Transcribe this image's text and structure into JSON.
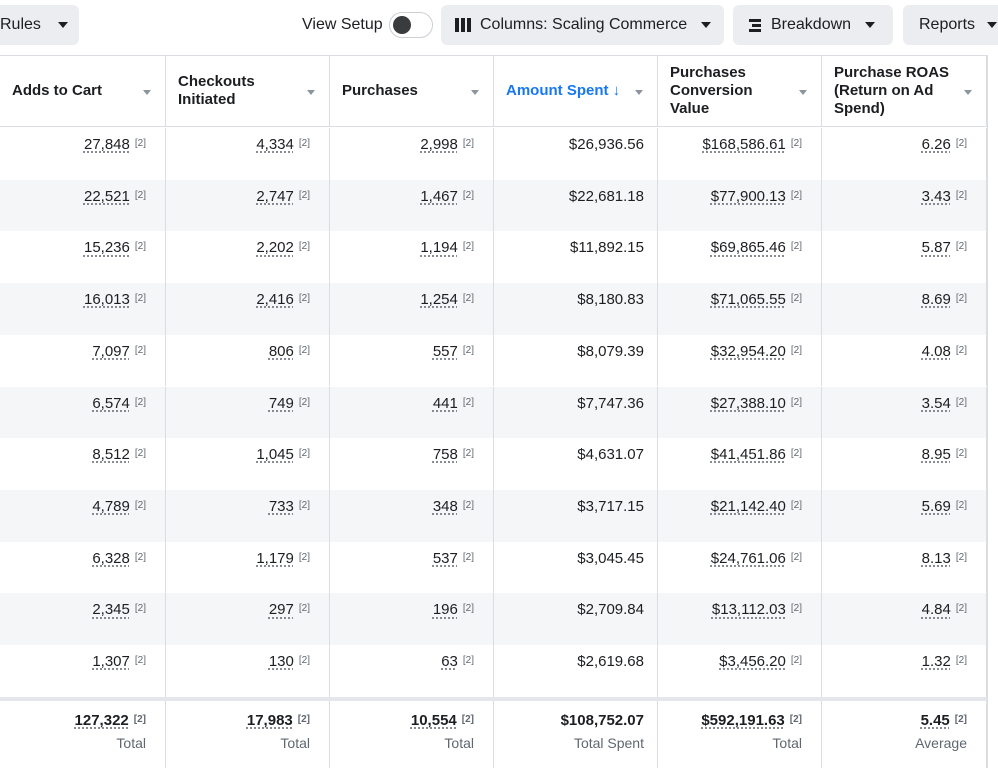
{
  "toolbar": {
    "rules_label": "Rules",
    "view_setup_label": "View Setup",
    "view_setup_toggle": "off",
    "columns_label": "Columns: Scaling Commerce",
    "breakdown_label": "Breakdown",
    "reports_label": "Reports"
  },
  "table": {
    "headers": [
      {
        "label": "Adds to Cart"
      },
      {
        "label": "Checkouts Initiated"
      },
      {
        "label": "Purchases"
      },
      {
        "label": "Amount Spent ↓",
        "sorted": true
      },
      {
        "label": "Purchases Conversion Value"
      },
      {
        "label": "Purchase ROAS (Return on Ad Spend)"
      }
    ],
    "footnote": "[2]",
    "rows": [
      [
        "27,848",
        "4,334",
        "2,998",
        "$26,936.56",
        "$168,586.61",
        "6.26"
      ],
      [
        "22,521",
        "2,747",
        "1,467",
        "$22,681.18",
        "$77,900.13",
        "3.43"
      ],
      [
        "15,236",
        "2,202",
        "1,194",
        "$11,892.15",
        "$69,865.46",
        "5.87"
      ],
      [
        "16,013",
        "2,416",
        "1,254",
        "$8,180.83",
        "$71,065.55",
        "8.69"
      ],
      [
        "7,097",
        "806",
        "557",
        "$8,079.39",
        "$32,954.20",
        "4.08"
      ],
      [
        "6,574",
        "749",
        "441",
        "$7,747.36",
        "$27,388.10",
        "3.54"
      ],
      [
        "8,512",
        "1,045",
        "758",
        "$4,631.07",
        "$41,451.86",
        "8.95"
      ],
      [
        "4,789",
        "733",
        "348",
        "$3,717.15",
        "$21,142.40",
        "5.69"
      ],
      [
        "6,328",
        "1,179",
        "537",
        "$3,045.45",
        "$24,761.06",
        "8.13"
      ],
      [
        "2,345",
        "297",
        "196",
        "$2,709.84",
        "$13,112.03",
        "4.84"
      ],
      [
        "1,307",
        "130",
        "63",
        "$2,619.68",
        "$3,456.20",
        "1.32"
      ]
    ],
    "totals": [
      {
        "value": "127,322",
        "label": "Total"
      },
      {
        "value": "17,983",
        "label": "Total"
      },
      {
        "value": "10,554",
        "label": "Total"
      },
      {
        "value": "$108,752.07",
        "label": "Total Spent"
      },
      {
        "value": "$592,191.63",
        "label": "Total"
      },
      {
        "value": "5.45",
        "label": "Average"
      }
    ]
  },
  "colors": {
    "accent": "#1877f2",
    "border": "#dadde1",
    "alt_row": "#f5f6f7",
    "button_bg": "#ebedf0"
  }
}
